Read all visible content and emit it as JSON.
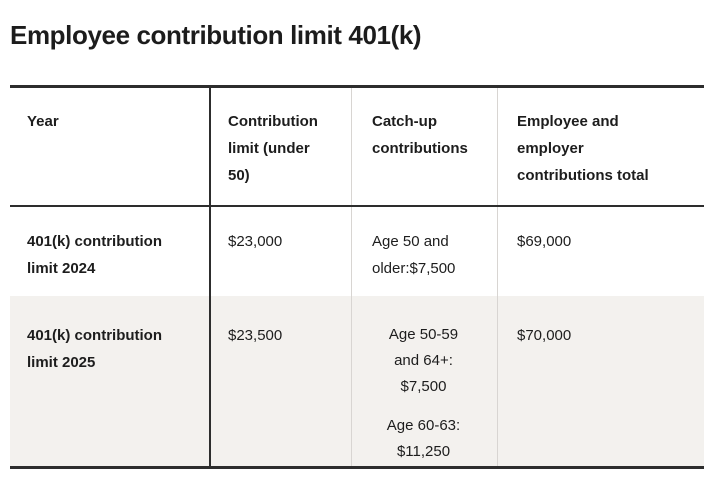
{
  "page": {
    "title": "Employee contribution limit 401(k)"
  },
  "table": {
    "header": [
      {
        "label": "Year",
        "lines": [
          "Year"
        ]
      },
      {
        "label": "Contribution limit (under 50)",
        "lines": [
          "Contribution",
          "limit (under",
          "50)"
        ]
      },
      {
        "label": "Catch-up contributions",
        "lines": [
          "Catch-up",
          "contributions"
        ]
      },
      {
        "label": "Employee and employer contributions total",
        "lines": [
          "Employee and",
          "employer",
          "contributions total"
        ]
      }
    ],
    "rows": [
      {
        "year_lines": [
          "401(k) contribution",
          "limit 2024"
        ],
        "limit": "$23,000",
        "catchup_paragraphs": [
          {
            "lines": [
              "Age 50 and",
              "older:$7,500"
            ]
          }
        ],
        "total": "$69,000"
      },
      {
        "year_lines": [
          "401(k) contribution",
          "limit 2025"
        ],
        "limit": "$23,500",
        "catchup_paragraphs": [
          {
            "lines": [
              "Age 50-59",
              "and 64+:",
              "$7,500"
            ]
          },
          {
            "lines": [
              "Age 60-63:",
              "$11,250"
            ]
          }
        ],
        "total": "$70,000"
      }
    ]
  },
  "colors": {
    "text": "#1d1d1d",
    "border_dark": "#2d2d2d",
    "divider_light": "#d8d5d2",
    "row_alt_bg": "#f3f1ee",
    "page_bg": "#ffffff"
  }
}
